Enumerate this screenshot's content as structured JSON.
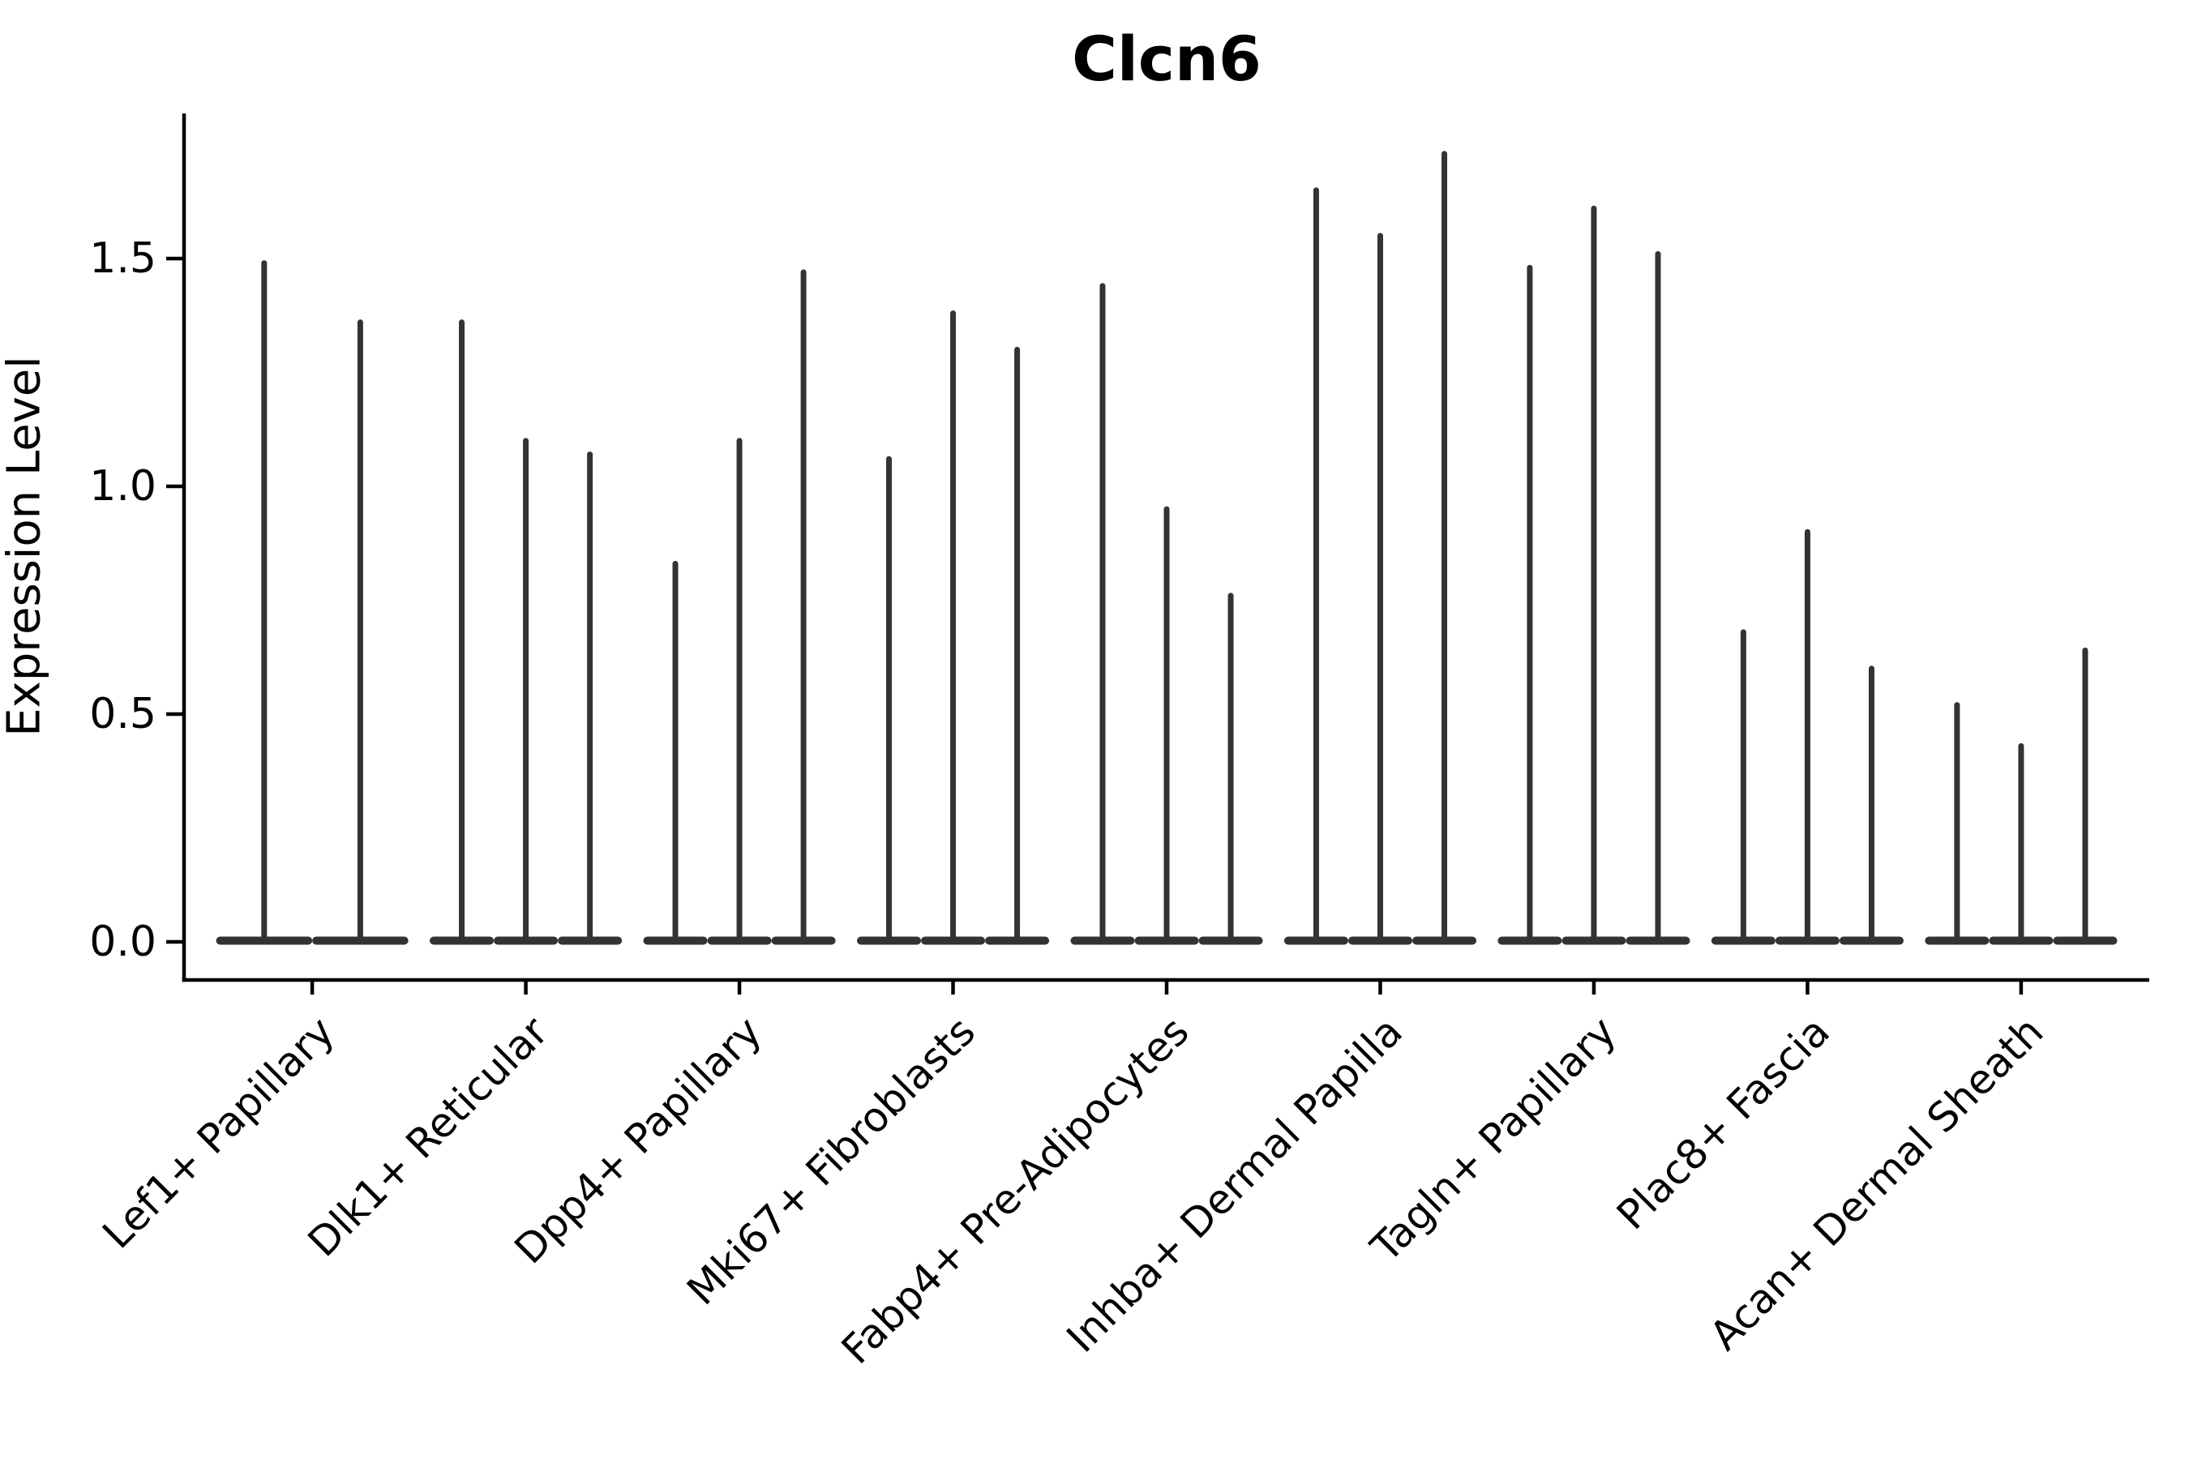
{
  "chart_data": {
    "type": "violin",
    "title": "Clcn6",
    "ylabel": "Expression Level",
    "xlabel": "",
    "categories": [
      "Lef1+ Papillary",
      "Dlk1+ Reticular",
      "Dpp4+ Papillary",
      "Mki67+ Fibroblasts",
      "Fabp4+ Pre-Adipocytes",
      "Inhba+ Dermal Papilla",
      "Tagln+ Papillary",
      "Plac8+ Fascia",
      "Acan+ Dermal Sheath"
    ],
    "violins": [
      {
        "category": "Lef1+ Papillary",
        "maxima": [
          1.49,
          1.36
        ]
      },
      {
        "category": "Dlk1+ Reticular",
        "maxima": [
          1.36,
          1.1,
          1.07
        ]
      },
      {
        "category": "Dpp4+ Papillary",
        "maxima": [
          0.83,
          1.1,
          1.47
        ]
      },
      {
        "category": "Mki67+ Fibroblasts",
        "maxima": [
          1.06,
          1.38,
          1.3
        ]
      },
      {
        "category": "Fabp4+ Pre-Adipocytes",
        "maxima": [
          1.44,
          0.95,
          0.76
        ]
      },
      {
        "category": "Inhba+ Dermal Papilla",
        "maxima": [
          1.65,
          1.55,
          1.73
        ]
      },
      {
        "category": "Tagln+ Papillary",
        "maxima": [
          1.48,
          1.61,
          1.51
        ]
      },
      {
        "category": "Plac8+ Fascia",
        "maxima": [
          0.68,
          0.9,
          0.6
        ]
      },
      {
        "category": "Acan+ Dermal Sheath",
        "maxima": [
          0.52,
          0.43,
          0.64
        ]
      }
    ],
    "ytick_labels": [
      "0.0",
      "0.5",
      "1.0",
      "1.5"
    ],
    "ytick_values": [
      0.0,
      0.5,
      1.0,
      1.5
    ],
    "ylim": [
      -0.08,
      1.82
    ],
    "grid": false,
    "legend": "none",
    "colors": {
      "violin": "#333333",
      "axis": "#000000",
      "text": "#000000",
      "background": "#ffffff"
    }
  }
}
